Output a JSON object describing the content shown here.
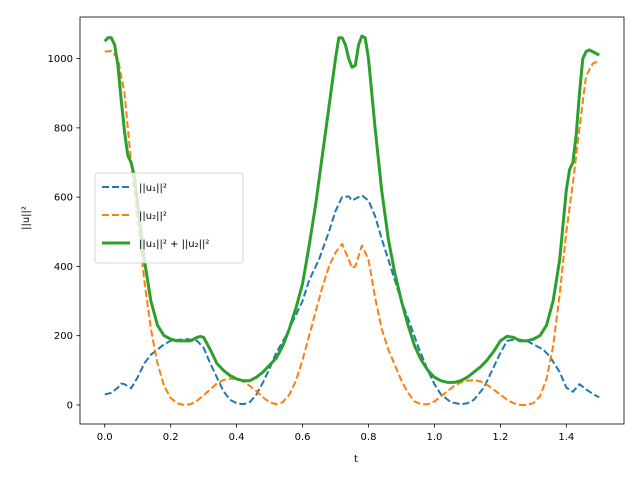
{
  "chart_data": {
    "type": "line",
    "title": "",
    "xlabel": "t",
    "ylabel": "||u||²",
    "xlim": [
      -0.075,
      1.575
    ],
    "ylim": [
      -55,
      1120
    ],
    "xticks": [
      0.0,
      0.2,
      0.4,
      0.6,
      0.8,
      1.0,
      1.2,
      1.4
    ],
    "xtick_labels": [
      "0.0",
      "0.2",
      "0.4",
      "0.6",
      "0.8",
      "1.0",
      "1.2",
      "1.4"
    ],
    "yticks": [
      0,
      200,
      400,
      600,
      800,
      1000
    ],
    "ytick_labels": [
      "0",
      "200",
      "400",
      "600",
      "800",
      "1000"
    ],
    "grid": false,
    "legend_position": "center-left",
    "series": [
      {
        "name": "||u₁||²",
        "color": "#1f77b4",
        "style": "dashed",
        "x": [
          0.0,
          0.02,
          0.04,
          0.05,
          0.06,
          0.08,
          0.1,
          0.12,
          0.14,
          0.16,
          0.18,
          0.2,
          0.22,
          0.25,
          0.28,
          0.3,
          0.32,
          0.34,
          0.36,
          0.38,
          0.4,
          0.42,
          0.44,
          0.46,
          0.48,
          0.5,
          0.52,
          0.55,
          0.58,
          0.6,
          0.62,
          0.65,
          0.68,
          0.7,
          0.72,
          0.74,
          0.75,
          0.77,
          0.78,
          0.8,
          0.82,
          0.84,
          0.86,
          0.88,
          0.9,
          0.92,
          0.95,
          0.98,
          1.0,
          1.02,
          1.05,
          1.08,
          1.1,
          1.12,
          1.15,
          1.18,
          1.2,
          1.22,
          1.25,
          1.28,
          1.3,
          1.33,
          1.35,
          1.38,
          1.4,
          1.42,
          1.44,
          1.46,
          1.48,
          1.5
        ],
        "y": [
          30,
          35,
          50,
          62,
          60,
          48,
          80,
          120,
          145,
          160,
          175,
          185,
          188,
          190,
          185,
          165,
          120,
          80,
          40,
          15,
          5,
          2,
          8,
          30,
          65,
          105,
          150,
          200,
          260,
          300,
          360,
          420,
          500,
          560,
          600,
          602,
          590,
          600,
          605,
          590,
          545,
          480,
          420,
          360,
          300,
          250,
          170,
          100,
          60,
          30,
          8,
          2,
          5,
          15,
          50,
          110,
          150,
          185,
          190,
          185,
          175,
          160,
          140,
          95,
          50,
          38,
          60,
          45,
          32,
          22
        ]
      },
      {
        "name": "||u₂||²",
        "color": "#ff7f0e",
        "style": "dashed",
        "x": [
          0.0,
          0.02,
          0.04,
          0.06,
          0.08,
          0.1,
          0.12,
          0.14,
          0.16,
          0.18,
          0.2,
          0.22,
          0.24,
          0.26,
          0.28,
          0.3,
          0.32,
          0.34,
          0.36,
          0.38,
          0.4,
          0.42,
          0.44,
          0.46,
          0.48,
          0.5,
          0.52,
          0.54,
          0.56,
          0.58,
          0.6,
          0.62,
          0.64,
          0.66,
          0.68,
          0.7,
          0.72,
          0.74,
          0.75,
          0.76,
          0.78,
          0.8,
          0.82,
          0.84,
          0.86,
          0.88,
          0.9,
          0.92,
          0.94,
          0.96,
          0.98,
          1.0,
          1.02,
          1.04,
          1.06,
          1.08,
          1.1,
          1.12,
          1.14,
          1.16,
          1.18,
          1.2,
          1.22,
          1.24,
          1.26,
          1.28,
          1.3,
          1.32,
          1.34,
          1.36,
          1.38,
          1.4,
          1.42,
          1.44,
          1.46,
          1.48,
          1.5
        ],
        "y": [
          1020,
          1022,
          1000,
          900,
          700,
          530,
          360,
          220,
          120,
          55,
          20,
          5,
          0,
          2,
          12,
          28,
          45,
          62,
          72,
          76,
          75,
          68,
          55,
          40,
          22,
          8,
          2,
          8,
          30,
          70,
          130,
          200,
          270,
          340,
          400,
          440,
          465,
          420,
          395,
          400,
          460,
          420,
          310,
          220,
          160,
          115,
          70,
          35,
          10,
          2,
          2,
          10,
          25,
          40,
          55,
          65,
          70,
          72,
          68,
          58,
          44,
          30,
          15,
          5,
          0,
          0,
          5,
          25,
          75,
          170,
          320,
          500,
          640,
          800,
          950,
          985,
          995
        ]
      },
      {
        "name": "||u₁||² + ||u₂||²",
        "color": "#2ca02c",
        "style": "solid",
        "x": [
          0.0,
          0.01,
          0.02,
          0.03,
          0.04,
          0.05,
          0.06,
          0.07,
          0.08,
          0.09,
          0.1,
          0.12,
          0.14,
          0.16,
          0.18,
          0.2,
          0.22,
          0.24,
          0.26,
          0.28,
          0.29,
          0.3,
          0.32,
          0.34,
          0.36,
          0.38,
          0.4,
          0.42,
          0.44,
          0.46,
          0.48,
          0.5,
          0.52,
          0.54,
          0.56,
          0.58,
          0.6,
          0.62,
          0.64,
          0.66,
          0.68,
          0.7,
          0.71,
          0.72,
          0.73,
          0.74,
          0.75,
          0.76,
          0.77,
          0.78,
          0.79,
          0.8,
          0.82,
          0.84,
          0.86,
          0.88,
          0.9,
          0.92,
          0.94,
          0.96,
          0.98,
          1.0,
          1.02,
          1.04,
          1.06,
          1.08,
          1.1,
          1.12,
          1.14,
          1.16,
          1.18,
          1.2,
          1.22,
          1.24,
          1.26,
          1.28,
          1.3,
          1.32,
          1.34,
          1.36,
          1.38,
          1.4,
          1.41,
          1.42,
          1.43,
          1.44,
          1.45,
          1.46,
          1.47,
          1.48,
          1.49,
          1.5
        ],
        "y": [
          1050,
          1060,
          1060,
          1040,
          980,
          880,
          790,
          720,
          700,
          660,
          580,
          420,
          300,
          230,
          200,
          190,
          185,
          185,
          185,
          195,
          198,
          195,
          160,
          120,
          100,
          85,
          75,
          70,
          70,
          80,
          95,
          115,
          135,
          170,
          220,
          280,
          350,
          460,
          580,
          720,
          860,
          1000,
          1060,
          1060,
          1040,
          1000,
          975,
          980,
          1040,
          1065,
          1060,
          1000,
          800,
          620,
          480,
          380,
          300,
          230,
          170,
          130,
          100,
          80,
          70,
          65,
          65,
          70,
          80,
          95,
          110,
          130,
          155,
          185,
          198,
          195,
          185,
          185,
          190,
          200,
          230,
          300,
          420,
          620,
          680,
          700,
          780,
          900,
          1000,
          1020,
          1025,
          1020,
          1015,
          1010
        ]
      }
    ]
  }
}
